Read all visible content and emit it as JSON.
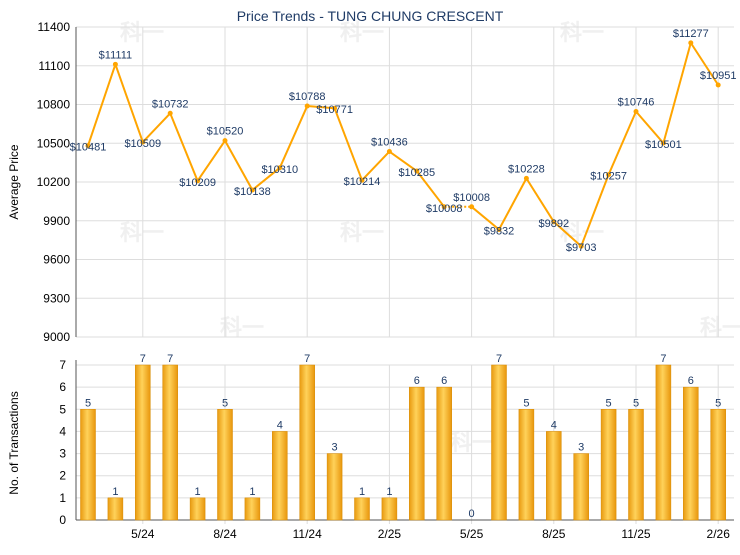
{
  "chart_data": [
    {
      "type": "line",
      "title": "Price Trends - TUNG CHUNG CRESCENT",
      "ylabel": "Average Price",
      "ylim": [
        9000,
        11400
      ],
      "yticks": [
        9000,
        9300,
        9600,
        9900,
        10200,
        10500,
        10800,
        11100,
        11400
      ],
      "grid": true,
      "color": "#FFA500",
      "label_color": "#1F3B66",
      "values": [
        10481,
        11111,
        10509,
        10732,
        10209,
        10520,
        10138,
        10310,
        10788,
        10771,
        10214,
        10436,
        10285,
        10008,
        10008,
        9832,
        10228,
        9892,
        9703,
        10257,
        10746,
        10501,
        11277,
        10951
      ],
      "data_labels": [
        "$10481",
        "$11111",
        "$10509",
        "$10732",
        "$10209",
        "$10520",
        "$10138",
        "$10310",
        "$10788",
        "$10771",
        "$10214",
        "$10436",
        "$10285",
        "$10008",
        "$10008",
        "$9832",
        "$10228",
        "$9892",
        "$9703",
        "$10257",
        "$10746",
        "$10501",
        "$11277",
        "$10951"
      ],
      "dotted_segments_after_index": [
        13
      ]
    },
    {
      "type": "bar",
      "ylabel": "No. of Transactions",
      "ylim": [
        0,
        7
      ],
      "yticks": [
        0,
        1,
        2,
        3,
        4,
        5,
        6,
        7
      ],
      "grid": true,
      "color": "#F0A818",
      "values": [
        5,
        1,
        7,
        7,
        1,
        5,
        1,
        4,
        7,
        3,
        1,
        1,
        6,
        6,
        0,
        7,
        5,
        4,
        3,
        5,
        5,
        7,
        6,
        5
      ],
      "xtick_labels": [
        "5/24",
        "8/24",
        "11/24",
        "2/25",
        "5/25",
        "8/25",
        "11/25",
        "2/26"
      ],
      "xtick_indices": [
        2,
        5,
        8,
        11,
        14,
        17,
        20,
        23
      ]
    }
  ],
  "watermark": "科一"
}
